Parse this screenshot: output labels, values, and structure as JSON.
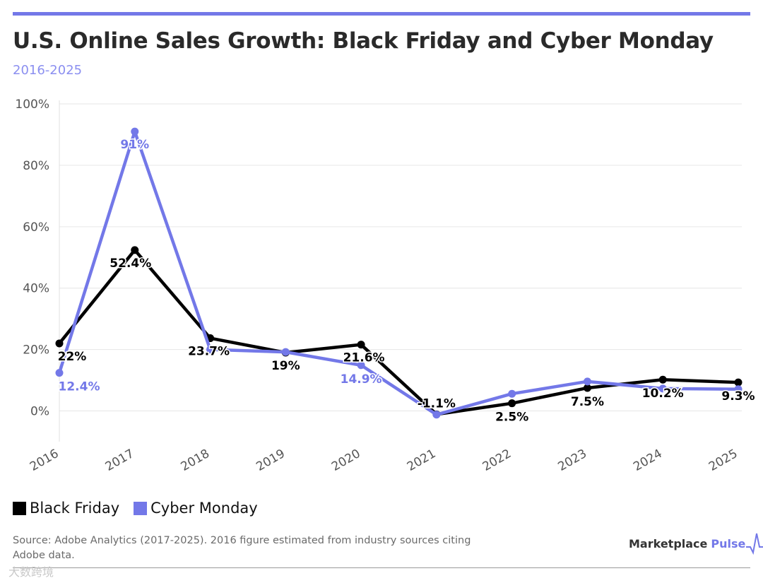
{
  "header": {
    "title": "U.S. Online Sales Growth: Black Friday and Cyber Monday",
    "subtitle": "2016-2025"
  },
  "colors": {
    "accent": "#7378e8",
    "black_friday": "#000000",
    "cyber_monday": "#7378e8"
  },
  "chart_data": {
    "type": "line",
    "title": "U.S. Online Sales Growth: Black Friday and Cyber Monday",
    "subtitle": "2016-2025",
    "xlabel": "",
    "ylabel": "",
    "x": [
      "2016",
      "2017",
      "2018",
      "2019",
      "2020",
      "2021",
      "2022",
      "2023",
      "2024",
      "2025"
    ],
    "ylim": [
      -10,
      100
    ],
    "yticks": [
      0,
      20,
      40,
      60,
      80,
      100
    ],
    "ytick_labels": [
      "0%",
      "20%",
      "40%",
      "60%",
      "80%",
      "100%"
    ],
    "grid": true,
    "series": [
      {
        "name": "Black Friday",
        "color": "#000000",
        "values": [
          22,
          52.4,
          23.7,
          19,
          21.6,
          -1.1,
          2.5,
          7.5,
          10.2,
          9.3
        ],
        "labels": [
          "22%",
          "52.4%",
          "23.7%",
          "19%",
          "21.6%",
          "-1.1%",
          "2.5%",
          "7.5%",
          "10.2%",
          "9.3%"
        ]
      },
      {
        "name": "Cyber Monday",
        "color": "#7378e8",
        "values": [
          12.4,
          91,
          20,
          19.2,
          14.9,
          -1.2,
          5.6,
          9.6,
          7.3,
          7.1
        ],
        "labels": [
          "12.4%",
          "91%",
          null,
          null,
          "14.9%",
          null,
          null,
          null,
          null,
          null
        ]
      }
    ]
  },
  "legend": {
    "items": [
      "Black Friday",
      "Cyber Monday"
    ]
  },
  "footer": {
    "source": "Source: Adobe Analytics (2017-2025). 2016 figure estimated from industry sources citing Adobe data.",
    "brand_name": "Marketplace",
    "brand_accent": "Pulse",
    "watermark": "大数跨境"
  }
}
